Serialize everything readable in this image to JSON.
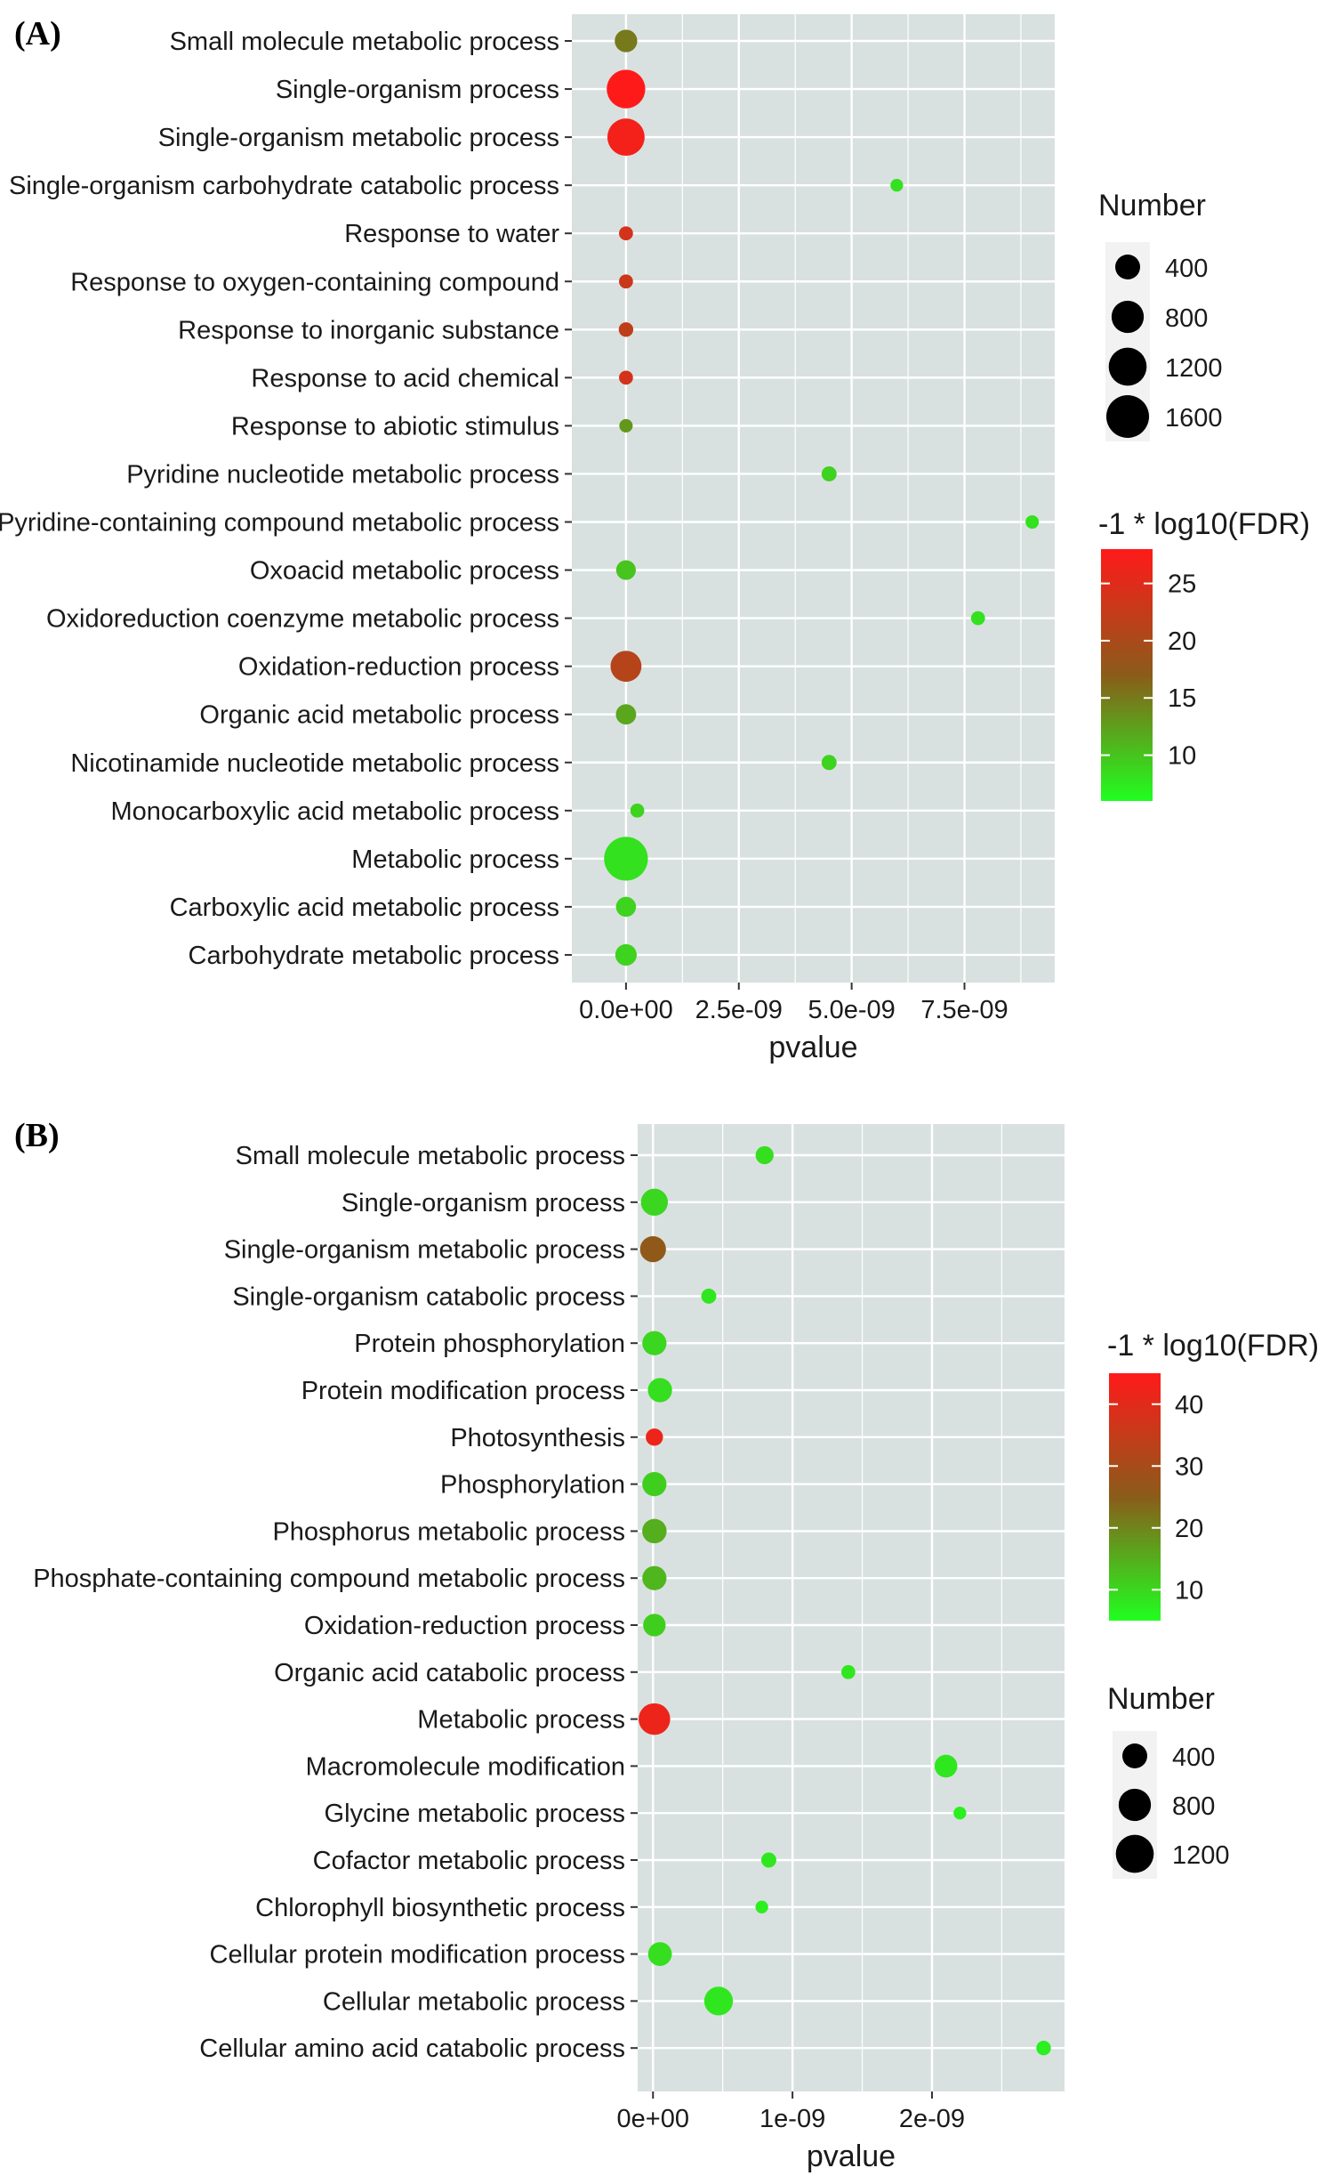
{
  "chart_data": [
    {
      "panel": "(A)",
      "type": "scatter",
      "xlabel": "pvalue",
      "xlim": [
        -1.2e-09,
        9.5e-09
      ],
      "xticks": [
        0,
        2.5e-09,
        5e-09,
        7.5e-09
      ],
      "xtick_labels": [
        "0.0e+00",
        "2.5e-09",
        "5.0e-09",
        "7.5e-09"
      ],
      "categories": [
        "Small molecule metabolic process",
        "Single-organism process",
        "Single-organism metabolic process",
        "Single-organism carbohydrate catabolic process",
        "Response to water",
        "Response to oxygen-containing compound",
        "Response to inorganic substance",
        "Response to acid chemical",
        "Response to abiotic stimulus",
        "Pyridine nucleotide metabolic process",
        "Pyridine-containing compound metabolic process",
        "Oxoacid metabolic process",
        "Oxidoreduction coenzyme metabolic process",
        "Oxidation-reduction process",
        "Organic acid metabolic process",
        "Nicotinamide nucleotide metabolic process",
        "Monocarboxylic acid metabolic process",
        "Metabolic process",
        "Carboxylic acid metabolic process",
        "Carbohydrate metabolic process"
      ],
      "pvalue": [
        0,
        0,
        0,
        6e-09,
        0,
        0,
        0,
        0,
        0,
        4.5e-09,
        9e-09,
        0,
        7.8e-09,
        0,
        0,
        4.5e-09,
        2.5e-10,
        0,
        0,
        0
      ],
      "number": [
        300,
        1250,
        1150,
        40,
        60,
        60,
        70,
        60,
        50,
        80,
        50,
        200,
        60,
        720,
        220,
        80,
        60,
        1700,
        210,
        260
      ],
      "neg_log10_fdr": [
        15,
        28,
        27,
        8,
        24,
        23,
        22,
        24,
        13,
        9,
        8,
        10,
        8,
        21,
        12,
        9,
        9,
        8,
        9,
        9
      ],
      "size_legend": {
        "title": "Number",
        "entries": [
          {
            "label": "400",
            "value": 400
          },
          {
            "label": "800",
            "value": 800
          },
          {
            "label": "1200",
            "value": 1200
          },
          {
            "label": "1600",
            "value": 1600
          }
        ]
      },
      "color_legend": {
        "title": "-1 * log10(FDR)",
        "range": [
          6,
          28
        ],
        "ticks": [
          {
            "label": "25",
            "value": 25
          },
          {
            "label": "20",
            "value": 20
          },
          {
            "label": "15",
            "value": 15
          },
          {
            "label": "10",
            "value": 10
          }
        ],
        "colors": {
          "low": "#20ff20",
          "mid": "#8a5c1a",
          "high": "#ff1a1a"
        }
      },
      "legend_order": "size-then-color",
      "panel_background": "#d9e1e0",
      "grid": true
    },
    {
      "panel": "(B)",
      "type": "scatter",
      "xlabel": "pvalue",
      "xlim": [
        -1.1e-10,
        2.95e-09
      ],
      "xticks": [
        0,
        1e-09,
        2e-09
      ],
      "xtick_labels": [
        "0e+00",
        "1e-09",
        "2e-09"
      ],
      "categories": [
        "Small molecule metabolic process",
        "Single-organism process",
        "Single-organism metabolic process",
        "Single-organism catabolic process",
        "Protein phosphorylation",
        "Protein modification process",
        "Photosynthesis",
        "Phosphorylation",
        "Phosphorus metabolic process",
        "Phosphate-containing compound metabolic process",
        "Oxidation-reduction process",
        "Organic acid catabolic process",
        "Metabolic process",
        "Macromolecule modification",
        "Glycine metabolic process",
        "Cofactor metabolic process",
        "Chlorophyll biosynthetic process",
        "Cellular protein modification process",
        "Cellular metabolic process",
        "Cellular amino acid catabolic process"
      ],
      "pvalue": [
        8e-10,
        1e-11,
        0,
        4e-10,
        1e-11,
        5e-11,
        1e-11,
        1e-11,
        1e-11,
        1e-11,
        1e-11,
        1.4e-09,
        1e-11,
        2.1e-09,
        2.2e-09,
        8.3e-10,
        7.8e-10,
        5e-11,
        4.7e-10,
        2.8e-09
      ],
      "number": [
        150,
        500,
        450,
        80,
        370,
        370,
        130,
        370,
        380,
        370,
        300,
        60,
        760,
        310,
        40,
        80,
        40,
        350,
        590,
        70
      ],
      "neg_log10_fdr": [
        9,
        10,
        26,
        8,
        10,
        9,
        42,
        11,
        15,
        14,
        11,
        8,
        42,
        8,
        7,
        8,
        7,
        9,
        8,
        7
      ],
      "size_legend": {
        "title": "Number",
        "entries": [
          {
            "label": "400",
            "value": 400
          },
          {
            "label": "800",
            "value": 800
          },
          {
            "label": "1200",
            "value": 1200
          }
        ]
      },
      "color_legend": {
        "title": "-1 * log10(FDR)",
        "range": [
          5,
          45
        ],
        "ticks": [
          {
            "label": "40",
            "value": 40
          },
          {
            "label": "30",
            "value": 30
          },
          {
            "label": "20",
            "value": 20
          },
          {
            "label": "10",
            "value": 10
          }
        ],
        "colors": {
          "low": "#20ff20",
          "mid": "#8a5c1a",
          "high": "#ff1a1a"
        }
      },
      "legend_order": "color-then-size",
      "panel_background": "#d9e1e0",
      "grid": true
    }
  ]
}
